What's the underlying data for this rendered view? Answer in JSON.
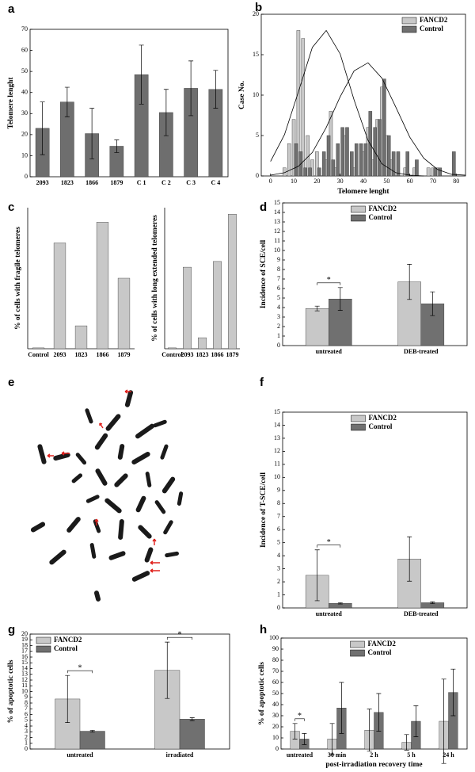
{
  "chart_data": [
    {
      "type": "bar",
      "label": "a",
      "ylabel": "Telomere lenght",
      "categories": [
        "2093",
        "1823",
        "1866",
        "1879",
        "C 1",
        "C 2",
        "C 3",
        "C 4"
      ],
      "values": [
        23,
        35.5,
        20.5,
        14.5,
        48.5,
        30.5,
        42,
        41.5
      ],
      "errors": [
        12.5,
        7,
        12,
        3,
        14,
        11,
        13,
        9
      ],
      "color": "#6e6e6e",
      "ylim": [
        0,
        70
      ],
      "yticks": [
        0,
        10,
        20,
        30,
        40,
        50,
        60,
        70
      ]
    },
    {
      "type": "histogram",
      "label": "b",
      "xlabel": "Telomere lenght",
      "ylabel": "Case No.",
      "xlim": [
        -4,
        84
      ],
      "xticks": [
        0,
        10,
        20,
        30,
        40,
        50,
        60,
        70,
        80
      ],
      "ylim": [
        0,
        20
      ],
      "yticks": [
        0,
        5,
        10,
        15,
        20
      ],
      "legend": "upper right",
      "series": [
        {
          "name": "FANCD2",
          "color": "#c8c8c8",
          "x": [
            6,
            8,
            10,
            12,
            14,
            16,
            18,
            20,
            24,
            26,
            28,
            32,
            36,
            40,
            42,
            44,
            46,
            48,
            50,
            52,
            58,
            62,
            68,
            70,
            72
          ],
          "values": [
            1,
            4,
            7,
            18,
            17,
            5,
            2,
            3,
            2,
            8,
            1,
            5,
            1,
            3,
            6,
            2,
            7,
            11,
            5,
            2,
            1,
            1,
            1,
            1,
            1
          ]
        },
        {
          "name": "Control",
          "color": "#707070",
          "x": [
            11,
            13,
            15,
            17,
            21,
            23,
            25,
            27,
            29,
            31,
            33,
            35,
            37,
            39,
            41,
            43,
            45,
            47,
            49,
            51,
            53,
            55,
            59,
            63,
            71,
            73,
            79
          ],
          "values": [
            4,
            3,
            1,
            1,
            1,
            3,
            5,
            2,
            4,
            6,
            6,
            3,
            4,
            4,
            4,
            8,
            6,
            7,
            12,
            5,
            3,
            3,
            3,
            2,
            1,
            1,
            3
          ]
        }
      ],
      "curves": [
        {
          "x": [
            0,
            6,
            12,
            18,
            24,
            30,
            36,
            42,
            48,
            54,
            60,
            66
          ],
          "values": [
            1.8,
            5.1,
            10.4,
            15.9,
            18,
            15.1,
            9.4,
            4.4,
            1.5,
            0.4,
            0.1,
            0
          ]
        },
        {
          "x": [
            0,
            6,
            12,
            18,
            24,
            30,
            36,
            42,
            48,
            54,
            60,
            66,
            72,
            78,
            84
          ],
          "values": [
            0.1,
            0.4,
            1.2,
            2.9,
            6,
            9.8,
            13,
            14,
            12.1,
            8.5,
            4.8,
            2.2,
            0.8,
            0.2,
            0.1
          ]
        }
      ]
    },
    {
      "type": "bar",
      "label": "c",
      "ylabel": "% of cells with fragile telomeres",
      "categories": [
        "Control",
        "2093",
        "1823",
        "1866",
        "1879"
      ],
      "values": [
        0.2,
        24,
        5.2,
        28.7,
        16
      ],
      "color": "#c8c8c8",
      "ylim": [
        0,
        32
      ]
    },
    {
      "type": "bar",
      "ylabel": "% of cells with long extended telomeres",
      "categories": [
        "Control",
        "2093",
        "1823",
        "1866",
        "1879"
      ],
      "values": [
        0.2,
        18.5,
        2.5,
        19.8,
        30.5
      ],
      "color": "#c8c8c8",
      "ylim": [
        0,
        32
      ]
    },
    {
      "type": "bar",
      "label": "d",
      "ylabel": "Incidence of SCE/cell",
      "categories": [
        "untreated",
        "DEB-treated"
      ],
      "legend": "upper center",
      "series": [
        {
          "name": "FANCD2",
          "color": "#c8c8c8",
          "values": [
            3.9,
            6.7
          ],
          "errors": [
            0.25,
            1.85
          ]
        },
        {
          "name": "Control",
          "color": "#707070",
          "values": [
            4.9,
            4.4
          ],
          "errors": [
            1.2,
            1.25
          ]
        }
      ],
      "ylim": [
        0,
        15
      ],
      "yticks": [
        0,
        1,
        2,
        3,
        4,
        5,
        6,
        7,
        8,
        9,
        10,
        11,
        12,
        13,
        14,
        15
      ],
      "annotations": [
        {
          "text": "*",
          "category": 0
        }
      ]
    },
    {
      "type": "image",
      "label": "e"
    },
    {
      "type": "bar",
      "label": "f",
      "ylabel": "Incidence of T-SCE/cell",
      "categories": [
        "untreated",
        "DEB-treated"
      ],
      "legend": "upper center",
      "series": [
        {
          "name": "FANCD2",
          "color": "#c8c8c8",
          "values": [
            2.5,
            3.75
          ],
          "errors": [
            1.95,
            1.7
          ]
        },
        {
          "name": "Control",
          "color": "#707070",
          "values": [
            0.35,
            0.4
          ],
          "errors": [
            0.05,
            0.07
          ]
        }
      ],
      "ylim": [
        0,
        15
      ],
      "yticks": [
        0,
        1,
        2,
        3,
        4,
        5,
        6,
        7,
        8,
        9,
        10,
        11,
        12,
        13,
        14,
        15
      ],
      "annotations": [
        {
          "text": "*",
          "category": 0
        }
      ]
    },
    {
      "type": "bar",
      "label": "g",
      "ylabel": "% of apoptotic cells",
      "categories": [
        "untreated",
        "irradiated"
      ],
      "legend": "upper left",
      "series": [
        {
          "name": "FANCD2",
          "color": "#c8c8c8",
          "values": [
            8.7,
            13.7
          ],
          "errors": [
            4.1,
            4.9
          ]
        },
        {
          "name": "Control",
          "color": "#707070",
          "values": [
            3.1,
            5.2
          ],
          "errors": [
            0.15,
            0.25
          ]
        }
      ],
      "ylim": [
        0,
        20
      ],
      "yticks": [
        0,
        1,
        2,
        3,
        4,
        5,
        6,
        7,
        8,
        9,
        10,
        11,
        12,
        13,
        14,
        15,
        16,
        17,
        18,
        19,
        20
      ],
      "annotations": [
        {
          "text": "*",
          "category": 0
        },
        {
          "text": "*",
          "category": 1
        }
      ]
    },
    {
      "type": "bar",
      "label": "h",
      "ylabel": "% of apoptotic cells",
      "xlabel": "post-irradiation recovery time",
      "categories": [
        "untreated",
        "30 min",
        "2 h",
        "5 h",
        "24 h"
      ],
      "legend": "upper center",
      "series": [
        {
          "name": "FANCD2",
          "color": "#c8c8c8",
          "values": [
            16,
            9,
            17,
            6,
            25
          ],
          "errors": [
            7,
            14,
            19,
            7,
            38
          ]
        },
        {
          "name": "Control",
          "color": "#707070",
          "values": [
            9,
            37,
            33,
            25,
            51
          ],
          "errors": [
            5,
            23,
            17,
            14,
            21
          ]
        }
      ],
      "ylim": [
        0,
        100
      ],
      "yticks": [
        0,
        10,
        20,
        30,
        40,
        50,
        60,
        70,
        80,
        90,
        100
      ],
      "annotations": [
        {
          "text": "*",
          "category": 0
        }
      ]
    }
  ]
}
